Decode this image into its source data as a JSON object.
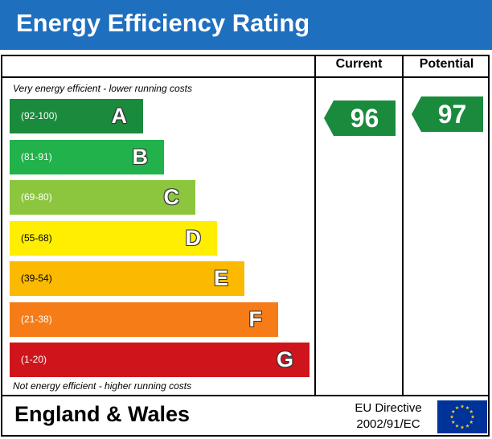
{
  "title": "Energy Efficiency Rating",
  "columns": {
    "current": "Current",
    "potential": "Potential"
  },
  "notes": {
    "top": "Very energy efficient - lower running costs",
    "bottom": "Not energy efficient - higher running costs"
  },
  "chart_data": {
    "type": "bar",
    "categories": [
      "A",
      "B",
      "C",
      "D",
      "E",
      "F",
      "G"
    ],
    "bands": [
      {
        "letter": "A",
        "range": "(92-100)",
        "color": "#1a8a3c",
        "text_color": "#ffffff"
      },
      {
        "letter": "B",
        "range": "(81-91)",
        "color": "#21b24b",
        "text_color": "#ffffff"
      },
      {
        "letter": "C",
        "range": "(69-80)",
        "color": "#8cc63f",
        "text_color": "#ffffff"
      },
      {
        "letter": "D",
        "range": "(55-68)",
        "color": "#ffee00",
        "text_color": "#000000"
      },
      {
        "letter": "E",
        "range": "(39-54)",
        "color": "#fbb900",
        "text_color": "#000000"
      },
      {
        "letter": "F",
        "range": "(21-38)",
        "color": "#f57c16",
        "text_color": "#ffffff"
      },
      {
        "letter": "G",
        "range": "(1-20)",
        "color": "#d0141c",
        "text_color": "#ffffff"
      }
    ],
    "current": {
      "value": 96,
      "band": "A",
      "color": "#1a8a3c"
    },
    "potential": {
      "value": 97,
      "band": "A",
      "color": "#1a8a3c"
    }
  },
  "footer": {
    "region": "England & Wales",
    "directive_line1": "EU Directive",
    "directive_line2": "2002/91/EC"
  },
  "eu_flag": {
    "icon": "eu-flag-icon",
    "blue": "#003399",
    "star": "#ffcc00"
  }
}
